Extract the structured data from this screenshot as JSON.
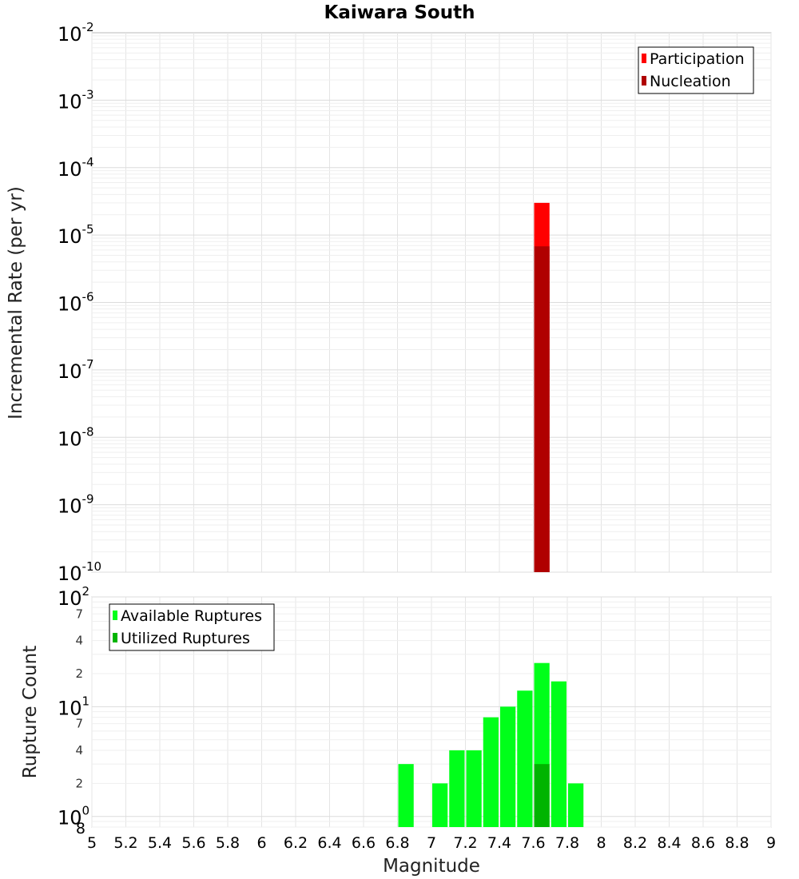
{
  "chart_data": [
    {
      "type": "bar",
      "title": "Kaiwara South",
      "ylabel": "Incremental Rate (per yr)",
      "xlim": [
        5,
        9
      ],
      "ylim": [
        1e-10,
        0.01
      ],
      "yscale": "log",
      "y_tick_labels": [
        {
          "base": "10",
          "exp": "-2"
        },
        {
          "base": "10",
          "exp": "-3"
        },
        {
          "base": "10",
          "exp": "-4"
        },
        {
          "base": "10",
          "exp": "-5"
        },
        {
          "base": "10",
          "exp": "-6"
        },
        {
          "base": "10",
          "exp": "-7"
        },
        {
          "base": "10",
          "exp": "-8"
        },
        {
          "base": "10",
          "exp": "-9"
        },
        {
          "base": "10",
          "exp": "-10"
        }
      ],
      "bin_width": 0.1,
      "grid": true,
      "legend_position": "top-right",
      "series": [
        {
          "name": "Participation",
          "color": "#ff0000",
          "x": [
            7.65
          ],
          "values": [
            3e-05
          ]
        },
        {
          "name": "Nucleation",
          "color": "#b00000",
          "x": [
            7.65
          ],
          "values": [
            6.8e-06
          ]
        }
      ]
    },
    {
      "type": "bar",
      "xlabel": "Magnitude",
      "ylabel": "Rupture Count",
      "xlim": [
        5,
        9
      ],
      "ylim": [
        0.8,
        100
      ],
      "yscale": "log",
      "x_tick_labels": [
        "5",
        "5.2",
        "5.4",
        "5.6",
        "5.8",
        "6",
        "6.2",
        "6.4",
        "6.6",
        "6.8",
        "7",
        "7.2",
        "7.4",
        "7.6",
        "7.8",
        "8",
        "8.2",
        "8.4",
        "8.6",
        "8.8",
        "9"
      ],
      "y_major_tick_labels": [
        {
          "base": "10",
          "exp": "2"
        },
        {
          "base": "10",
          "exp": "1"
        },
        {
          "base": "10",
          "exp": "0"
        }
      ],
      "y_minor_tick_labels": [
        "7",
        "4",
        "2",
        "7",
        "4",
        "2",
        "8"
      ],
      "bin_width": 0.1,
      "grid": true,
      "legend_position": "top-left",
      "series": [
        {
          "name": "Available Ruptures",
          "color": "#00ff1a",
          "x": [
            6.85,
            7.05,
            7.15,
            7.25,
            7.35,
            7.45,
            7.55,
            7.65,
            7.75,
            7.85
          ],
          "values": [
            3,
            2,
            4,
            4,
            8,
            10,
            14,
            25,
            17,
            2
          ]
        },
        {
          "name": "Utilized Ruptures",
          "color": "#00b400",
          "x": [
            7.65
          ],
          "values": [
            3
          ]
        }
      ]
    }
  ]
}
